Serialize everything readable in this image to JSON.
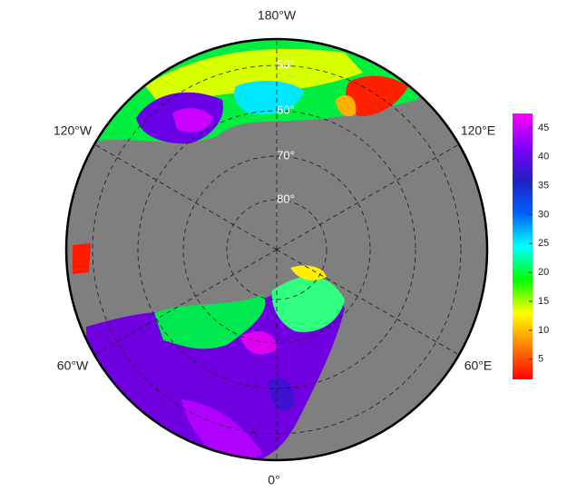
{
  "map": {
    "lon_labels": [
      "180°W",
      "120°E",
      "60°E",
      "0°",
      "60°W",
      "120°W"
    ],
    "lat_labels": [
      "50°",
      "60°",
      "70°",
      "80°"
    ]
  },
  "colorbar": {
    "range": [
      1.5,
      47.5
    ],
    "ticks": [
      5,
      10,
      15,
      20,
      25,
      30,
      35,
      40,
      45
    ],
    "colors": [
      "#ff0000",
      "#ff8000",
      "#ffff00",
      "#00ff00",
      "#00ffff",
      "#0060ff",
      "#2020c0",
      "#8000ff",
      "#ff00ff"
    ]
  }
}
